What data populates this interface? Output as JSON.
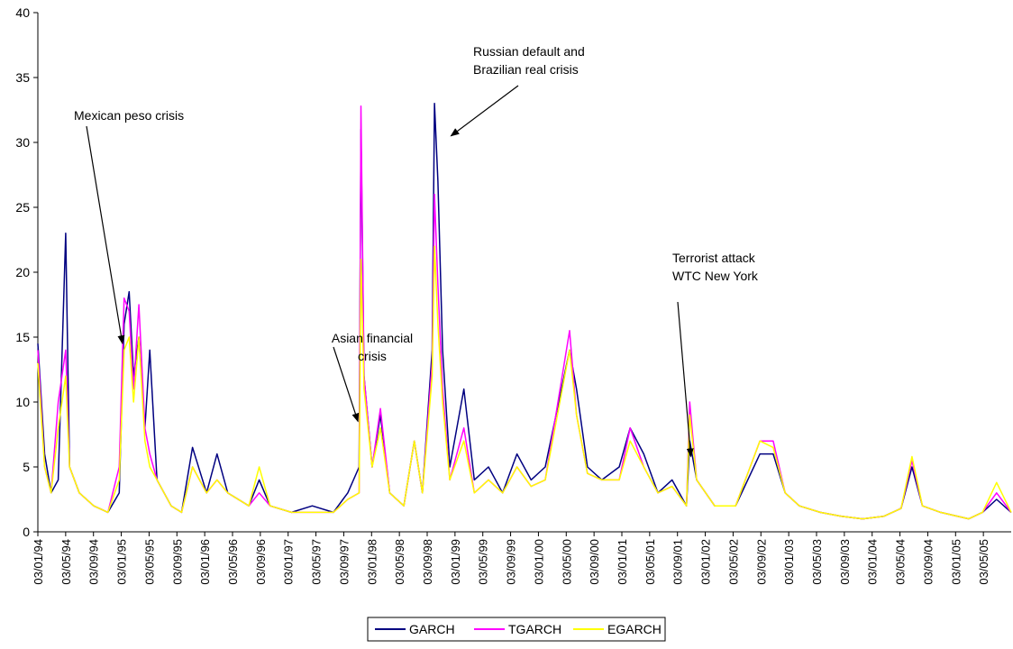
{
  "chart_data": {
    "type": "line",
    "title": "",
    "xlabel": "",
    "ylabel": "",
    "ylim": [
      0,
      40
    ],
    "yticks": [
      0,
      5,
      10,
      15,
      20,
      25,
      30,
      35,
      40
    ],
    "x_start": "1994-01-03",
    "x_end": "2005-07-03",
    "xtick_labels": [
      "03/01/94",
      "03/05/94",
      "03/09/94",
      "03/01/95",
      "03/05/95",
      "03/09/95",
      "03/01/96",
      "03/05/96",
      "03/09/96",
      "03/01/97",
      "03/05/97",
      "03/09/97",
      "03/01/98",
      "03/05/98",
      "03/09/98",
      "03/01/99",
      "03/05/99",
      "03/09/99",
      "03/01/00",
      "03/05/00",
      "03/09/00",
      "03/01/01",
      "03/05/01",
      "03/09/01",
      "03/01/02",
      "03/05/02",
      "03/09/02",
      "03/01/03",
      "03/05/03",
      "03/09/03",
      "03/01/04",
      "03/05/04",
      "03/09/04",
      "03/01/05",
      "03/05/05"
    ],
    "legend_position": "bottom-center",
    "grid": false,
    "series": [
      {
        "name": "GARCH",
        "color": "#000080",
        "points": [
          [
            "1994-01-03",
            14.5
          ],
          [
            "1994-02-01",
            6
          ],
          [
            "1994-03-01",
            3
          ],
          [
            "1994-04-01",
            4
          ],
          [
            "1994-05-03",
            23
          ],
          [
            "1994-05-20",
            5
          ],
          [
            "1994-07-01",
            3
          ],
          [
            "1994-09-01",
            2
          ],
          [
            "1994-11-01",
            1.5
          ],
          [
            "1994-12-20",
            3
          ],
          [
            "1995-01-10",
            16
          ],
          [
            "1995-02-01",
            18.5
          ],
          [
            "1995-02-20",
            12
          ],
          [
            "1995-03-15",
            15
          ],
          [
            "1995-04-10",
            8
          ],
          [
            "1995-05-01",
            14
          ],
          [
            "1995-06-01",
            4
          ],
          [
            "1995-08-01",
            2
          ],
          [
            "1995-09-15",
            1.5
          ],
          [
            "1995-11-01",
            6.5
          ],
          [
            "1996-01-01",
            3
          ],
          [
            "1996-02-15",
            6
          ],
          [
            "1996-04-01",
            3
          ],
          [
            "1996-07-01",
            2
          ],
          [
            "1996-08-15",
            4
          ],
          [
            "1996-10-01",
            2
          ],
          [
            "1997-01-01",
            1.5
          ],
          [
            "1997-04-01",
            2
          ],
          [
            "1997-07-01",
            1.5
          ],
          [
            "1997-09-01",
            3
          ],
          [
            "1997-10-20",
            5
          ],
          [
            "1997-10-28",
            31
          ],
          [
            "1997-11-10",
            12
          ],
          [
            "1997-12-15",
            5
          ],
          [
            "1998-01-20",
            9
          ],
          [
            "1998-03-01",
            3
          ],
          [
            "1998-05-01",
            2
          ],
          [
            "1998-06-15",
            7
          ],
          [
            "1998-07-20",
            3
          ],
          [
            "1998-08-31",
            14
          ],
          [
            "1998-09-10",
            33
          ],
          [
            "1998-09-25",
            27
          ],
          [
            "1998-10-15",
            14
          ],
          [
            "1998-11-15",
            5
          ],
          [
            "1999-01-15",
            11
          ],
          [
            "1999-03-01",
            4
          ],
          [
            "1999-05-01",
            5
          ],
          [
            "1999-07-01",
            3
          ],
          [
            "1999-09-01",
            6
          ],
          [
            "1999-11-01",
            4
          ],
          [
            "2000-01-01",
            5
          ],
          [
            "2000-04-15",
            14
          ],
          [
            "2000-05-15",
            11
          ],
          [
            "2000-07-01",
            5
          ],
          [
            "2000-09-01",
            4
          ],
          [
            "2000-11-15",
            5
          ],
          [
            "2001-01-01",
            8
          ],
          [
            "2001-03-01",
            6
          ],
          [
            "2001-05-01",
            3
          ],
          [
            "2001-07-01",
            4
          ],
          [
            "2001-09-01",
            2
          ],
          [
            "2001-09-15",
            7
          ],
          [
            "2001-10-15",
            4
          ],
          [
            "2002-01-01",
            2
          ],
          [
            "2002-04-01",
            2
          ],
          [
            "2002-07-15",
            6
          ],
          [
            "2002-09-10",
            6
          ],
          [
            "2002-11-01",
            3
          ],
          [
            "2003-01-01",
            2
          ],
          [
            "2003-04-01",
            1.5
          ],
          [
            "2003-07-01",
            1.2
          ],
          [
            "2003-10-01",
            1
          ],
          [
            "2004-01-01",
            1.2
          ],
          [
            "2004-03-15",
            1.8
          ],
          [
            "2004-05-01",
            5
          ],
          [
            "2004-06-15",
            2
          ],
          [
            "2004-09-01",
            1.5
          ],
          [
            "2005-01-01",
            1
          ],
          [
            "2005-03-01",
            1.5
          ],
          [
            "2005-05-01",
            2.5
          ],
          [
            "2005-07-03",
            1.5
          ]
        ]
      },
      {
        "name": "TGARCH",
        "color": "#ff00ff",
        "points": [
          [
            "1994-01-03",
            14
          ],
          [
            "1994-02-01",
            5
          ],
          [
            "1994-03-01",
            3
          ],
          [
            "1994-04-01",
            10
          ],
          [
            "1994-05-03",
            14
          ],
          [
            "1994-05-20",
            5
          ],
          [
            "1994-07-01",
            3
          ],
          [
            "1994-09-01",
            2
          ],
          [
            "1994-11-01",
            1.5
          ],
          [
            "1994-12-20",
            5
          ],
          [
            "1995-01-10",
            18
          ],
          [
            "1995-02-01",
            17
          ],
          [
            "1995-02-20",
            11
          ],
          [
            "1995-03-15",
            17.5
          ],
          [
            "1995-04-10",
            8
          ],
          [
            "1995-05-01",
            6
          ],
          [
            "1995-06-01",
            4
          ],
          [
            "1995-08-01",
            2
          ],
          [
            "1995-09-15",
            1.5
          ],
          [
            "1995-11-01",
            5
          ],
          [
            "1996-01-01",
            3
          ],
          [
            "1996-02-15",
            4
          ],
          [
            "1996-04-01",
            3
          ],
          [
            "1996-07-01",
            2
          ],
          [
            "1996-08-15",
            3
          ],
          [
            "1996-10-01",
            2
          ],
          [
            "1997-01-01",
            1.5
          ],
          [
            "1997-04-01",
            1.5
          ],
          [
            "1997-07-01",
            1.5
          ],
          [
            "1997-09-01",
            2.5
          ],
          [
            "1997-10-20",
            3
          ],
          [
            "1997-10-28",
            32.8
          ],
          [
            "1997-11-10",
            12
          ],
          [
            "1997-12-15",
            5
          ],
          [
            "1998-01-20",
            9.5
          ],
          [
            "1998-03-01",
            3
          ],
          [
            "1998-05-01",
            2
          ],
          [
            "1998-06-15",
            7
          ],
          [
            "1998-07-20",
            3
          ],
          [
            "1998-08-31",
            13
          ],
          [
            "1998-09-10",
            26
          ],
          [
            "1998-09-25",
            19
          ],
          [
            "1998-10-15",
            11
          ],
          [
            "1998-11-15",
            4
          ],
          [
            "1999-01-15",
            8
          ],
          [
            "1999-03-01",
            3
          ],
          [
            "1999-05-01",
            4
          ],
          [
            "1999-07-01",
            3
          ],
          [
            "1999-09-01",
            5
          ],
          [
            "1999-11-01",
            3.5
          ],
          [
            "2000-01-01",
            4
          ],
          [
            "2000-04-15",
            15.5
          ],
          [
            "2000-05-15",
            9
          ],
          [
            "2000-07-01",
            4.5
          ],
          [
            "2000-09-01",
            4
          ],
          [
            "2000-11-15",
            4
          ],
          [
            "2001-01-01",
            8
          ],
          [
            "2001-03-01",
            5
          ],
          [
            "2001-05-01",
            3
          ],
          [
            "2001-07-01",
            3.5
          ],
          [
            "2001-09-01",
            2
          ],
          [
            "2001-09-15",
            10
          ],
          [
            "2001-10-15",
            4
          ],
          [
            "2002-01-01",
            2
          ],
          [
            "2002-04-01",
            2
          ],
          [
            "2002-07-15",
            7
          ],
          [
            "2002-09-10",
            7
          ],
          [
            "2002-11-01",
            3
          ],
          [
            "2003-01-01",
            2
          ],
          [
            "2003-04-01",
            1.5
          ],
          [
            "2003-07-01",
            1.2
          ],
          [
            "2003-10-01",
            1
          ],
          [
            "2004-01-01",
            1.2
          ],
          [
            "2004-03-15",
            1.8
          ],
          [
            "2004-05-01",
            5.5
          ],
          [
            "2004-06-15",
            2
          ],
          [
            "2004-09-01",
            1.5
          ],
          [
            "2005-01-01",
            1
          ],
          [
            "2005-03-01",
            1.5
          ],
          [
            "2005-05-01",
            3
          ],
          [
            "2005-07-03",
            1.5
          ]
        ]
      },
      {
        "name": "EGARCH",
        "color": "#ffff00",
        "points": [
          [
            "1994-01-03",
            13
          ],
          [
            "1994-02-01",
            5
          ],
          [
            "1994-03-01",
            3
          ],
          [
            "1994-04-01",
            8
          ],
          [
            "1994-05-03",
            12
          ],
          [
            "1994-05-20",
            5
          ],
          [
            "1994-07-01",
            3
          ],
          [
            "1994-09-01",
            2
          ],
          [
            "1994-11-01",
            1.5
          ],
          [
            "1994-12-20",
            4
          ],
          [
            "1995-01-10",
            14
          ],
          [
            "1995-02-01",
            15
          ],
          [
            "1995-02-20",
            10
          ],
          [
            "1995-03-15",
            15
          ],
          [
            "1995-04-10",
            7
          ],
          [
            "1995-05-01",
            5
          ],
          [
            "1995-06-01",
            4
          ],
          [
            "1995-08-01",
            2
          ],
          [
            "1995-09-15",
            1.5
          ],
          [
            "1995-11-01",
            5
          ],
          [
            "1996-01-01",
            3
          ],
          [
            "1996-02-15",
            4
          ],
          [
            "1996-04-01",
            3
          ],
          [
            "1996-07-01",
            2
          ],
          [
            "1996-08-15",
            5
          ],
          [
            "1996-10-01",
            2
          ],
          [
            "1997-01-01",
            1.5
          ],
          [
            "1997-04-01",
            1.5
          ],
          [
            "1997-07-01",
            1.5
          ],
          [
            "1997-09-01",
            2.5
          ],
          [
            "1997-10-20",
            3
          ],
          [
            "1997-10-28",
            21
          ],
          [
            "1997-11-10",
            11
          ],
          [
            "1997-12-15",
            5
          ],
          [
            "1998-01-20",
            8
          ],
          [
            "1998-03-01",
            3
          ],
          [
            "1998-05-01",
            2
          ],
          [
            "1998-06-15",
            7
          ],
          [
            "1998-07-20",
            3
          ],
          [
            "1998-08-31",
            12
          ],
          [
            "1998-09-10",
            22
          ],
          [
            "1998-09-25",
            16
          ],
          [
            "1998-10-15",
            10
          ],
          [
            "1998-11-15",
            4
          ],
          [
            "1999-01-15",
            7
          ],
          [
            "1999-03-01",
            3
          ],
          [
            "1999-05-01",
            4
          ],
          [
            "1999-07-01",
            3
          ],
          [
            "1999-09-01",
            5
          ],
          [
            "1999-11-01",
            3.5
          ],
          [
            "2000-01-01",
            4
          ],
          [
            "2000-04-15",
            14
          ],
          [
            "2000-05-15",
            9
          ],
          [
            "2000-07-01",
            4.5
          ],
          [
            "2000-09-01",
            4
          ],
          [
            "2000-11-15",
            4
          ],
          [
            "2001-01-01",
            7
          ],
          [
            "2001-03-01",
            5
          ],
          [
            "2001-05-01",
            3
          ],
          [
            "2001-07-01",
            3.5
          ],
          [
            "2001-09-01",
            2
          ],
          [
            "2001-09-15",
            9
          ],
          [
            "2001-10-15",
            4
          ],
          [
            "2002-01-01",
            2
          ],
          [
            "2002-04-01",
            2
          ],
          [
            "2002-07-15",
            7
          ],
          [
            "2002-09-10",
            6.5
          ],
          [
            "2002-11-01",
            3
          ],
          [
            "2003-01-01",
            2
          ],
          [
            "2003-04-01",
            1.5
          ],
          [
            "2003-07-01",
            1.2
          ],
          [
            "2003-10-01",
            1
          ],
          [
            "2004-01-01",
            1.2
          ],
          [
            "2004-03-15",
            1.8
          ],
          [
            "2004-05-01",
            5.8
          ],
          [
            "2004-06-15",
            2
          ],
          [
            "2004-09-01",
            1.5
          ],
          [
            "2005-01-01",
            1
          ],
          [
            "2005-03-01",
            1.5
          ],
          [
            "2005-05-01",
            3.8
          ],
          [
            "2005-07-03",
            1.5
          ]
        ]
      }
    ],
    "annotations": [
      {
        "lines": [
          "Mexican peso crisis"
        ],
        "arrow_target": [
          "1995-01-03",
          14.5
        ]
      },
      {
        "lines": [
          "Asian financial",
          "crisis"
        ],
        "arrow_target": [
          "1997-10-15",
          8.5
        ]
      },
      {
        "lines": [
          "Russian default and",
          "Brazilian real crisis"
        ],
        "arrow_target": [
          "1998-11-20",
          30.5
        ]
      },
      {
        "lines": [
          "Terrorist attack",
          "WTC New York"
        ],
        "arrow_target": [
          "2001-09-20",
          5.8
        ]
      }
    ]
  }
}
